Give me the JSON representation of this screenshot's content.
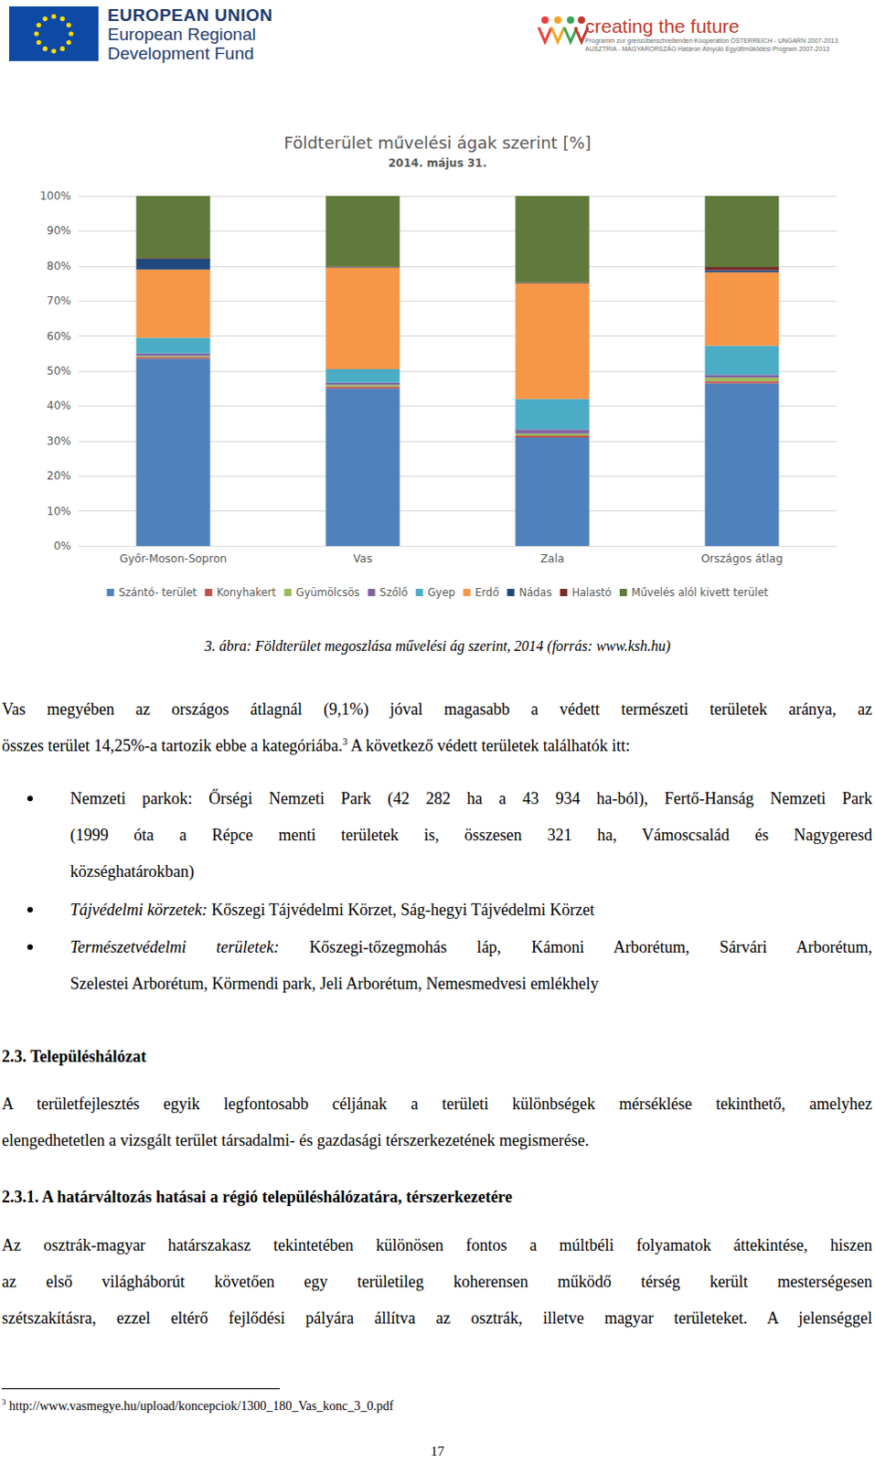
{
  "header": {
    "left": [
      "EUROPEAN UNION",
      "European Regional",
      "Development Fund"
    ],
    "right_title": "creating the future",
    "right_lines": [
      "Programm zur grenzüberschreitenden Kooperation ÖSTERREICH - UNGARN 2007-2013",
      "AUSZTRIA - MAGYARORSZÁG Határon Átnyúló Együttműködési Program 2007-2013"
    ]
  },
  "chart_data": {
    "type": "bar",
    "title": "Földterület művelési ágak szerint [%]",
    "subtitle": "2014. május 31.",
    "categories": [
      "Győr-Moson-Sopron",
      "Vas",
      "Zala",
      "Országos átlag"
    ],
    "stacked": true,
    "grid": true,
    "legend": "bottom",
    "ylim": [
      0,
      100
    ],
    "yticks": [
      {
        "value": 0,
        "label": "0%"
      },
      {
        "value": 10,
        "label": "10%"
      },
      {
        "value": 20,
        "label": "20%"
      },
      {
        "value": 30,
        "label": "30%"
      },
      {
        "value": 40,
        "label": "40%"
      },
      {
        "value": 50,
        "label": "50%"
      },
      {
        "value": 60,
        "label": "60%"
      },
      {
        "value": 70,
        "label": "70%"
      },
      {
        "value": 80,
        "label": "80%"
      },
      {
        "value": 90,
        "label": "90%"
      },
      {
        "value": 100,
        "label": "100%"
      }
    ],
    "series": [
      {
        "name": "Szántó- terület",
        "color": "#4f81bd",
        "values": [
          53.5,
          45,
          31,
          46.5
        ]
      },
      {
        "name": "Konyhakert",
        "color": "#c0504d",
        "values": [
          0.5,
          0.5,
          0.5,
          0.6
        ]
      },
      {
        "name": "Gyümölcsös",
        "color": "#9bbb59",
        "values": [
          0.3,
          0.5,
          0.6,
          1
        ]
      },
      {
        "name": "Szőlő",
        "color": "#8064a2",
        "values": [
          0.7,
          0.7,
          1.2,
          0.8
        ]
      },
      {
        "name": "Gyep",
        "color": "#4bacc6",
        "values": [
          4.5,
          3.8,
          8.7,
          8.3
        ]
      },
      {
        "name": "Erdő",
        "color": "#f79646",
        "values": [
          19.5,
          29,
          33,
          21
        ]
      },
      {
        "name": "Nádas",
        "color": "#1f497d",
        "values": [
          3,
          0.1,
          0.1,
          0.6
        ]
      },
      {
        "name": "Halastó",
        "color": "#772c2a",
        "values": [
          0.2,
          0.2,
          0.2,
          0.9
        ]
      },
      {
        "name": "Művelés alól kivett terület",
        "color": "#5f7a3a",
        "values": [
          17.8,
          20.2,
          24.7,
          20.3
        ]
      }
    ]
  },
  "caption": "3. ábra: Földterület megoszlása művelési ág szerint, 2014 (forrás: www.ksh.hu)",
  "body": [
    {
      "kind": "p",
      "lines": [
        [
          "Vas megyében az országos átlagnál (9,1%) jóval magasabb a védett természeti területek aránya, az"
        ],
        [
          "összes terület 14,25%-a tartozik ebbe a kategóriába.",
          {
            "sup": "3"
          },
          " A következő védett területek találhatók itt:"
        ]
      ]
    },
    {
      "kind": "list",
      "items": [
        [
          [
            "Nemzeti parkok: Őrségi Nemzeti Park (42 282 ha a 43 934 ha-ból), Fertő-Hanság Nemzeti Park"
          ],
          [
            "(1999 óta a Répce menti területek is, összesen 321 ha, Vámoscsalád és Nagygeresd"
          ],
          [
            "községhatárokban)"
          ]
        ],
        [
          [
            {
              "i": "Tájvédelmi körzetek:"
            },
            " Kőszegi Tájvédelmi Körzet, Ság-hegyi Tájvédelmi Körzet"
          ]
        ],
        [
          [
            {
              "i": "Természetvédelmi területek:"
            },
            " Kőszegi-tőzegmohás láp, Kámoni Arborétum, Sárvári Arborétum,"
          ],
          [
            "Szelestei Arborétum, Körmendi park, Jeli Arborétum, Nemesmedvesi emlékhely"
          ]
        ]
      ]
    },
    {
      "kind": "h",
      "text": "2.3. Településhálózat"
    },
    {
      "kind": "p",
      "lines": [
        [
          "A területfejlesztés egyik legfontosabb céljának a területi különbségek mérséklése tekinthető, amelyhez"
        ],
        [
          "elengedhetetlen a vizsgált terület társadalmi- és gazdasági térszerkezetének megismerése."
        ]
      ]
    },
    {
      "kind": "h",
      "text": "2.3.1. A határváltozás hatásai a régió településhálózatára, térszerkezetére"
    },
    {
      "kind": "p",
      "lines": [
        [
          "Az osztrák-magyar határszakasz tekintetében különösen fontos a múltbéli folyamatok áttekintése, hiszen"
        ],
        [
          "az első világháborút követően egy területileg koherensen működő térség került mesterségesen"
        ],
        [
          "szétszakításra, ezzel eltérő fejlődési pályára állítva az osztrák, illetve magyar területeket. A jelenséggel"
        ]
      ],
      "continues": true
    }
  ],
  "footnote": {
    "mark": "3",
    "text": "http://www.vasmegye.hu/upload/koncepciok/1300_180_Vas_konc_3_0.pdf"
  },
  "page_number": "17"
}
